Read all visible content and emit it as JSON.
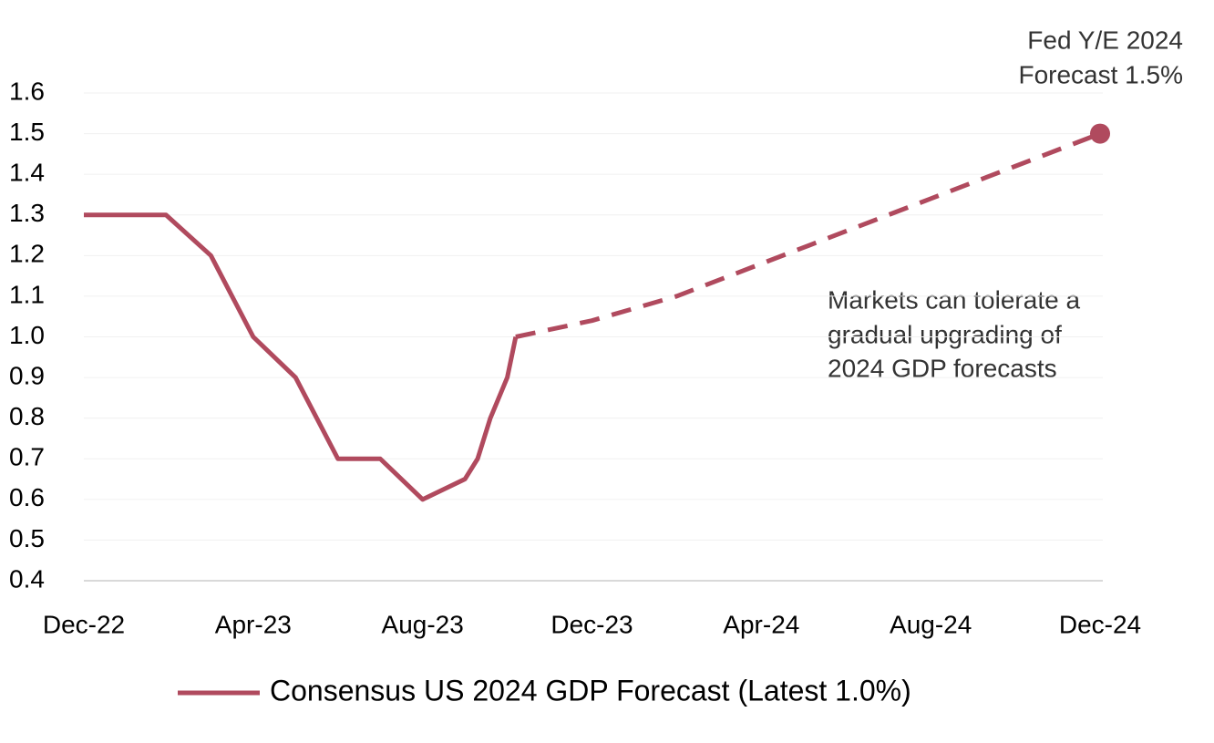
{
  "chart_data": {
    "type": "line",
    "xlim": [
      0,
      24
    ],
    "xticks": [
      {
        "value": 0,
        "label": "Dec-22"
      },
      {
        "value": 4,
        "label": "Apr-23"
      },
      {
        "value": 8,
        "label": "Aug-23"
      },
      {
        "value": 12,
        "label": "Dec-23"
      },
      {
        "value": 16,
        "label": "Apr-24"
      },
      {
        "value": 20,
        "label": "Aug-24"
      },
      {
        "value": 24,
        "label": "Dec-24"
      }
    ],
    "ylim": [
      0.4,
      1.6
    ],
    "yticks": [
      {
        "value": 0.4,
        "label": "0.4"
      },
      {
        "value": 0.5,
        "label": "0.5"
      },
      {
        "value": 0.6,
        "label": "0.6"
      },
      {
        "value": 0.7,
        "label": "0.7"
      },
      {
        "value": 0.8,
        "label": "0.8"
      },
      {
        "value": 0.9,
        "label": "0.9"
      },
      {
        "value": 1.0,
        "label": "1.0"
      },
      {
        "value": 1.1,
        "label": "1.1"
      },
      {
        "value": 1.2,
        "label": "1.2"
      },
      {
        "value": 1.3,
        "label": "1.3"
      },
      {
        "value": 1.4,
        "label": "1.4"
      },
      {
        "value": 1.5,
        "label": "1.5"
      },
      {
        "value": 1.6,
        "label": "1.6"
      }
    ],
    "grid": true,
    "series": [
      {
        "name": "Consensus US 2024 GDP Forecast (Latest 1.0%)",
        "color": "#b04a5e",
        "dashed": false,
        "x": [
          0,
          1.94,
          3,
          4,
          5,
          6,
          7,
          8,
          9,
          9.3,
          9.6,
          10,
          10.2
        ],
        "values": [
          1.3,
          1.3,
          1.2,
          1.0,
          0.9,
          0.7,
          0.7,
          0.6,
          0.65,
          0.7,
          0.8,
          0.9,
          1.0
        ]
      },
      {
        "color": "#b04a5e",
        "dashed": true,
        "x": [
          10.2,
          12,
          14,
          16,
          18,
          20,
          22,
          24
        ],
        "values": [
          1.0,
          1.04,
          1.1,
          1.18,
          1.26,
          1.34,
          1.42,
          1.5
        ]
      }
    ],
    "point": {
      "x": 24,
      "y": 1.5,
      "color": "#b04a5e",
      "label": [
        "Fed Y/E 2024",
        "Forecast 1.5%"
      ]
    },
    "annotation": [
      "Markets can tolerate a",
      "gradual upgrading of",
      "2024 GDP forecasts"
    ]
  }
}
